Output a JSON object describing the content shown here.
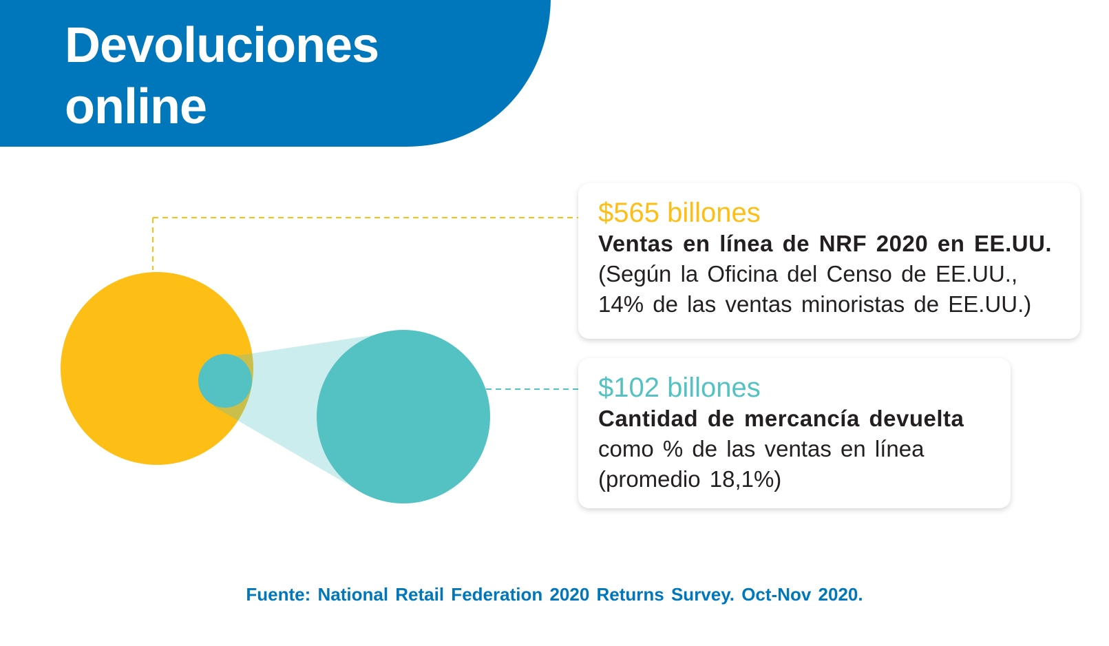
{
  "header": {
    "title_line1": "Devoluciones",
    "title_line2": "online"
  },
  "colors": {
    "header_blue": "#0077bb",
    "yellow": "#fdbe16",
    "teal": "#54c2c3",
    "teal_light": "#cbeced",
    "text_dark": "#231f20"
  },
  "cards": [
    {
      "amount": "$565 billones",
      "heading": "Ventas en línea de NRF 2020 en EE.UU.",
      "lines": [
        "(Según la Oficina del Censo de EE.UU.,",
        "14% de las ventas minoristas de EE.UU.)"
      ]
    },
    {
      "amount": "$102 billones",
      "heading": "Cantidad de mercancía devuelta",
      "lines": [
        "como % de las ventas en línea",
        "(promedio 18,1%)"
      ]
    }
  ],
  "footer": {
    "source": "Fuente: National Retail Federation 2020 Returns Survey. Oct-Nov 2020."
  }
}
